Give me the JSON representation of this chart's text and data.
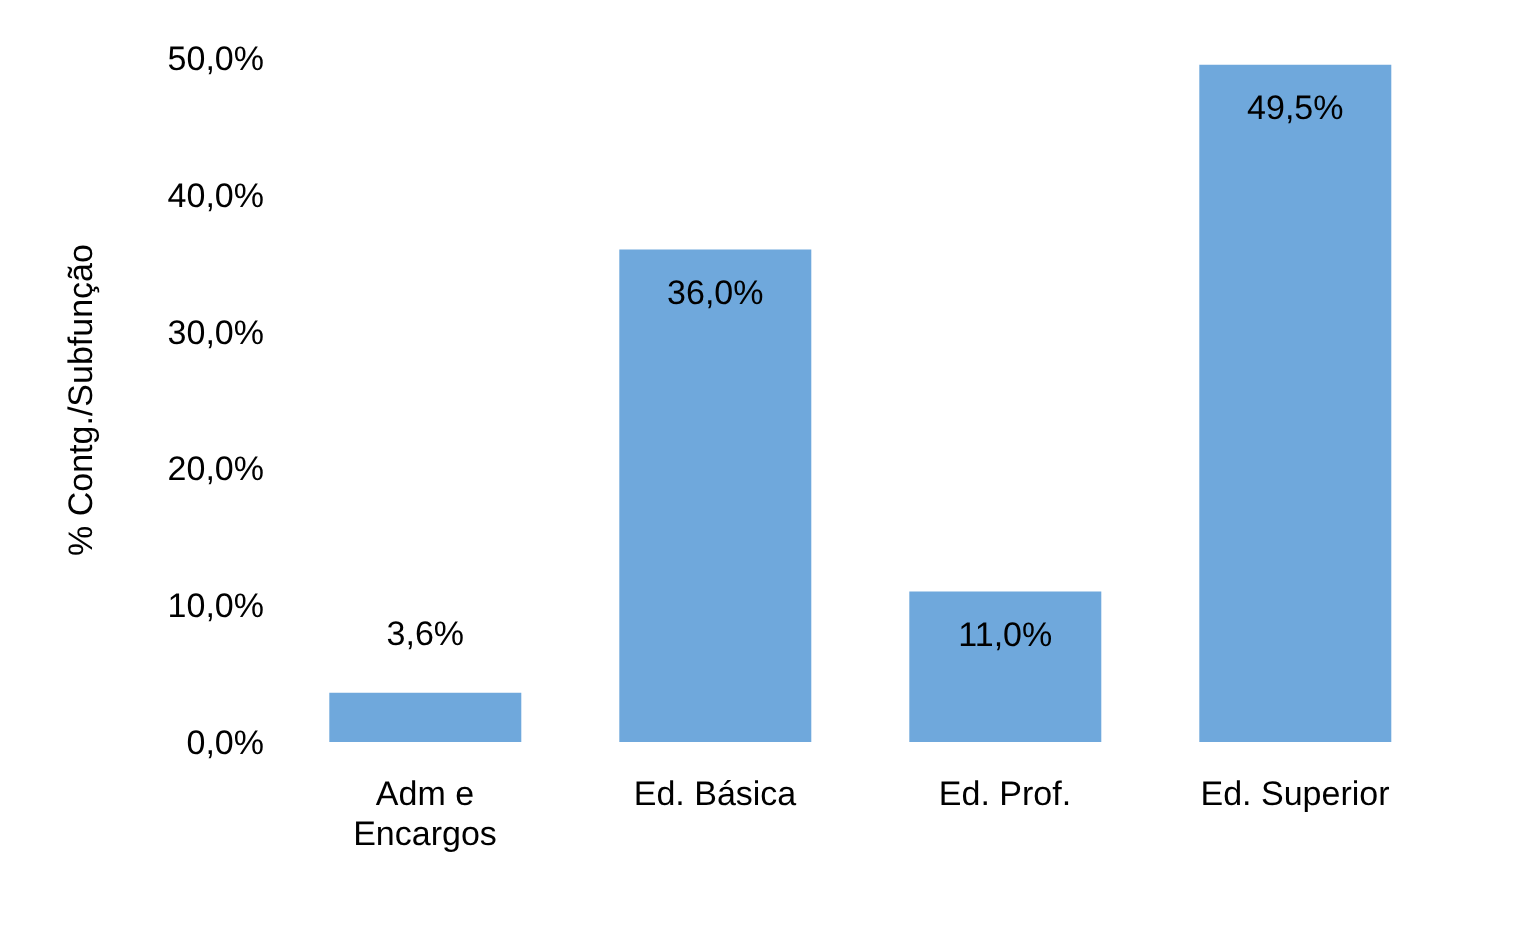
{
  "chart_data": {
    "type": "bar",
    "ylabel": "% Contg./Subfunção",
    "categories": [
      "Adm e Encargos",
      "Ed. Básica",
      "Ed. Prof.",
      "Ed. Superior"
    ],
    "values": [
      3.6,
      36.0,
      11.0,
      49.5
    ],
    "value_labels": [
      "3,6%",
      "36,0%",
      "11,0%",
      "49,5%"
    ],
    "color": "#6fa8dc",
    "ylim": [
      0,
      50
    ],
    "yticks": [
      {
        "value": 0,
        "label": "0,0%"
      },
      {
        "value": 10,
        "label": "10,0%"
      },
      {
        "value": 20,
        "label": "20,0%"
      },
      {
        "value": 30,
        "label": "30,0%"
      },
      {
        "value": 40,
        "label": "40,0%"
      },
      {
        "value": 50,
        "label": "50,0%"
      }
    ],
    "grid": false,
    "legend": false
  }
}
